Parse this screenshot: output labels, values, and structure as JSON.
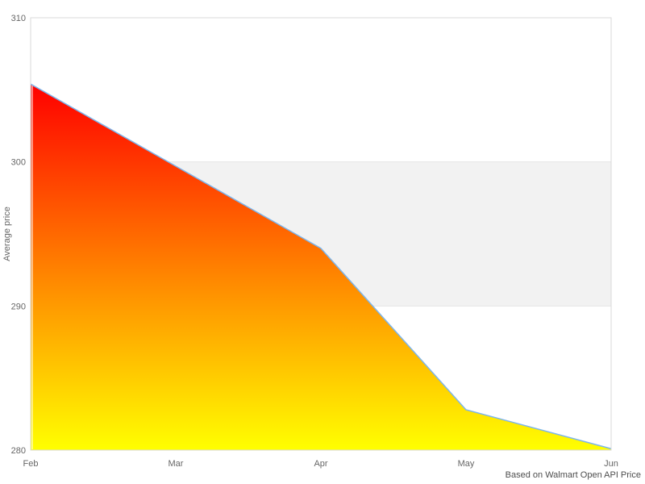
{
  "chart_data": {
    "type": "area",
    "categories": [
      "Feb",
      "Mar",
      "Apr",
      "May",
      "Jun"
    ],
    "values": [
      305.4,
      299.7,
      294.0,
      282.8,
      280.1
    ],
    "series_name": "Average price",
    "title": "",
    "xlabel": "",
    "ylabel": "Average price",
    "ylim": [
      280,
      310
    ],
    "y_ticks": [
      280,
      290,
      300,
      310
    ],
    "plot_band": {
      "from": 290,
      "to": 300
    },
    "legend": "none",
    "grid": "band-edges-only",
    "credits": "Based on Walmart Open API Price",
    "colors": {
      "line": "#7cb5ec",
      "area_gradient_top": "#ff0000",
      "area_gradient_bottom": "#ffff00",
      "plot_band": "#f2f2f2",
      "grid_line": "#e6e6e6",
      "plot_border": "#d8d8d8",
      "tick_label": "#666666",
      "credits_text": "#4d4d4d",
      "background": "#ffffff"
    }
  }
}
